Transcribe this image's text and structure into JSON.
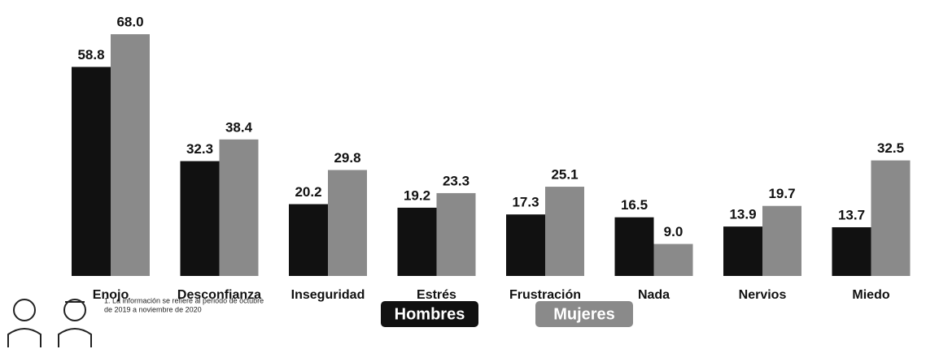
{
  "chart_data": {
    "type": "bar",
    "categories": [
      "Enojo",
      "Desconfianza",
      "Inseguridad",
      "Estrés",
      "Frustración",
      "Nada",
      "Nervios",
      "Miedo"
    ],
    "series": [
      {
        "name": "Hombres",
        "color": "#111111",
        "values": [
          58.8,
          32.3,
          20.2,
          19.2,
          17.3,
          16.5,
          13.9,
          13.7
        ],
        "value_labels": [
          "58.8",
          "32.3",
          "20.2",
          "19.2",
          "17.3",
          "16.5",
          "13.9",
          "13.7"
        ]
      },
      {
        "name": "Mujeres",
        "color": "#8a8a8a",
        "values": [
          68.0,
          38.4,
          29.8,
          23.3,
          25.1,
          9.0,
          19.7,
          32.5
        ],
        "value_labels": [
          "68.0",
          "38.4",
          "29.8",
          "23.3",
          "25.1",
          "9.0",
          "19.7",
          "32.5"
        ]
      }
    ],
    "note": [
      "1. La información se refiere al periodo de octubre",
      "de 2019 a noviembre de 2020"
    ]
  }
}
